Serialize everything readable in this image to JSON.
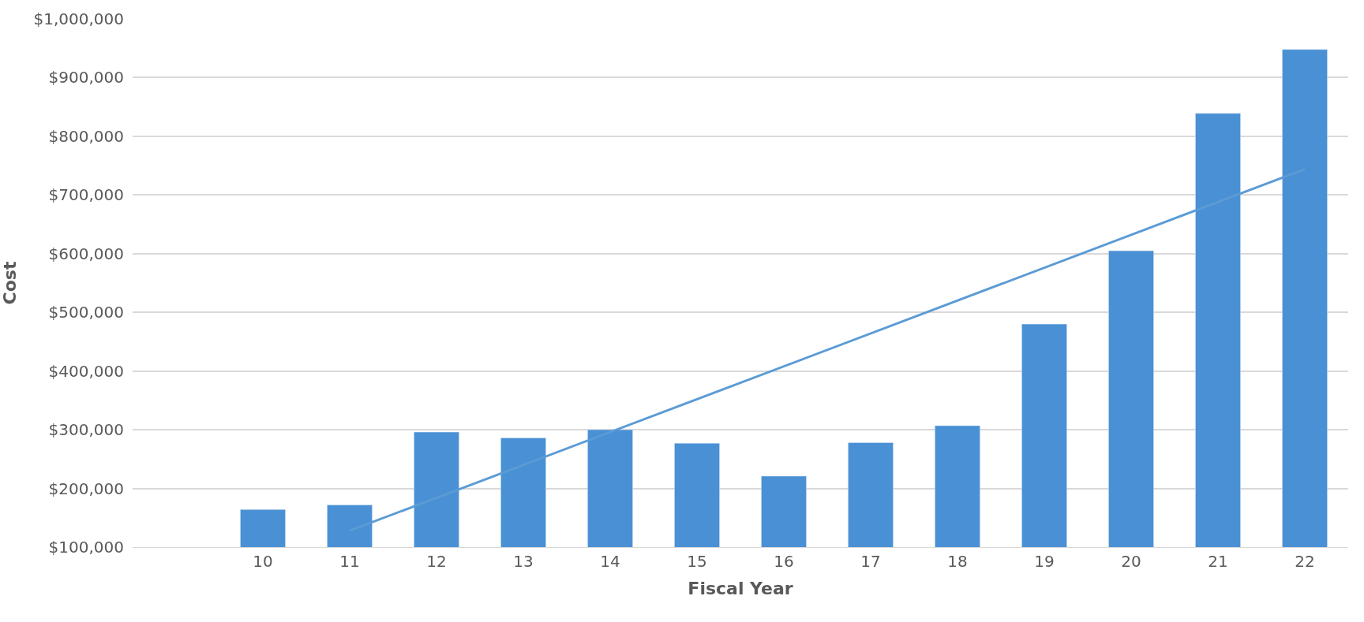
{
  "chart_data": {
    "type": "bar",
    "xlabel": "Fiscal Year",
    "ylabel": "Cost",
    "categories": [
      null,
      "10",
      "11",
      "12",
      "13",
      "14",
      "15",
      "16",
      "17",
      "18",
      "19",
      "20",
      "21",
      "22"
    ],
    "series": [
      {
        "color": "#4a90d4",
        "values": [
          null,
          164000,
          172000,
          296000,
          286000,
          300000,
          277000,
          221000,
          278000,
          307000,
          480000,
          605000,
          839000,
          948000
        ]
      },
      {
        "type": "line",
        "color": "#5b9bd5",
        "x": [
          "11",
          "22"
        ],
        "values": [
          128000,
          744000
        ]
      }
    ],
    "ylim": [
      100000,
      1000000
    ],
    "yticks": [
      {
        "value": 100000,
        "label": "$100,000"
      },
      {
        "value": 200000,
        "label": "$200,000"
      },
      {
        "value": 300000,
        "label": "$300,000"
      },
      {
        "value": 400000,
        "label": "$400,000"
      },
      {
        "value": 500000,
        "label": "$500,000"
      },
      {
        "value": 600000,
        "label": "$600,000"
      },
      {
        "value": 700000,
        "label": "$700,000"
      },
      {
        "value": 800000,
        "label": "$800,000"
      },
      {
        "value": 900000,
        "label": "$900,000"
      },
      {
        "value": 1000000,
        "label": "$1,000,000"
      }
    ],
    "grid": "y"
  }
}
